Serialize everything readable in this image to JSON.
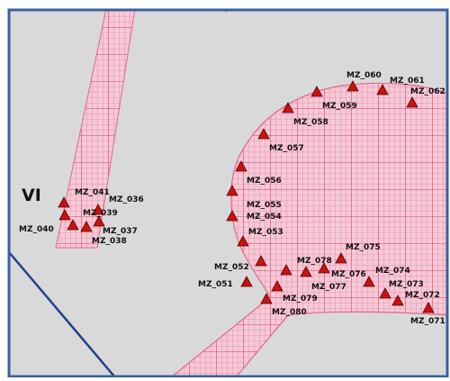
{
  "map": {
    "zone_label": "VI",
    "colors": {
      "background": "#d9d9d9",
      "frame": "#3a5fa0",
      "hatch_fill": "#f5c9d6",
      "hatch_line": "#e2668f",
      "marker": "#cc1111",
      "marker_outline": "#5a0000",
      "label": "#111111"
    },
    "marker_icon": "red-triangle-marker",
    "points": [
      {
        "id": "MZ_041",
        "label": "MZ_041"
      },
      {
        "id": "MZ_036",
        "label": "MZ_036"
      },
      {
        "id": "MZ_039",
        "label": "MZ_039"
      },
      {
        "id": "MZ_040",
        "label": "MZ_040"
      },
      {
        "id": "MZ_037",
        "label": "MZ_037"
      },
      {
        "id": "MZ_038",
        "label": "MZ_038"
      },
      {
        "id": "MZ_060",
        "label": "MZ_060"
      },
      {
        "id": "MZ_061",
        "label": "MZ_061"
      },
      {
        "id": "MZ_062",
        "label": "MZ_062"
      },
      {
        "id": "MZ_059",
        "label": "MZ_059"
      },
      {
        "id": "MZ_058",
        "label": "MZ_058"
      },
      {
        "id": "MZ_057",
        "label": "MZ_057"
      },
      {
        "id": "MZ_056",
        "label": "MZ_056"
      },
      {
        "id": "MZ_055",
        "label": "MZ_055"
      },
      {
        "id": "MZ_054",
        "label": "MZ_054"
      },
      {
        "id": "MZ_053",
        "label": "MZ_053"
      },
      {
        "id": "MZ_075",
        "label": "MZ_075"
      },
      {
        "id": "MZ_052",
        "label": "MZ_052"
      },
      {
        "id": "MZ_078",
        "label": "MZ_078"
      },
      {
        "id": "MZ_076",
        "label": "MZ_076"
      },
      {
        "id": "MZ_074",
        "label": "MZ_074"
      },
      {
        "id": "MZ_051",
        "label": "MZ_051"
      },
      {
        "id": "MZ_077",
        "label": "MZ_077"
      },
      {
        "id": "MZ_073",
        "label": "MZ_073"
      },
      {
        "id": "MZ_079",
        "label": "MZ_079"
      },
      {
        "id": "MZ_072",
        "label": "MZ_072"
      },
      {
        "id": "MZ_080",
        "label": "MZ_080"
      },
      {
        "id": "MZ_071",
        "label": "MZ_071"
      }
    ]
  }
}
